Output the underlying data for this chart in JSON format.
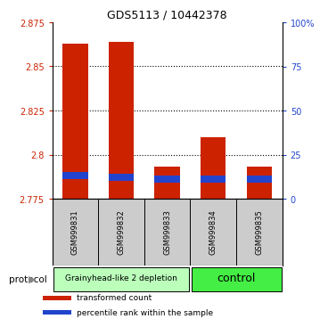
{
  "title": "GDS5113 / 10442378",
  "samples": [
    "GSM999831",
    "GSM999832",
    "GSM999833",
    "GSM999834",
    "GSM999835"
  ],
  "transformed_count": [
    2.863,
    2.864,
    2.793,
    2.81,
    2.793
  ],
  "percentile_rank": [
    2.788,
    2.787,
    2.786,
    2.786,
    2.786
  ],
  "bar_bottom": 2.775,
  "ylim_left": [
    2.775,
    2.875
  ],
  "ylim_right": [
    0,
    100
  ],
  "yticks_left": [
    2.775,
    2.8,
    2.825,
    2.85,
    2.875
  ],
  "yticks_right": [
    0,
    25,
    50,
    75,
    100
  ],
  "ytick_labels_left": [
    "2.775",
    "2.8",
    "2.825",
    "2.85",
    "2.875"
  ],
  "ytick_labels_right": [
    "0",
    "25",
    "50",
    "75",
    "100%"
  ],
  "red_color": "#cc2200",
  "blue_color": "#2244cc",
  "bar_width": 0.55,
  "blue_bar_height": 0.004,
  "group0_color": "#bbffbb",
  "group0_label": "Grainyhead-like 2 depletion",
  "group0_text_size": 6.5,
  "group1_color": "#44ee44",
  "group1_label": "control",
  "group1_text_size": 9,
  "protocol_label": "protocol",
  "legend_items": [
    {
      "color": "#cc2200",
      "label": "transformed count"
    },
    {
      "color": "#2244cc",
      "label": "percentile rank within the sample"
    }
  ],
  "background_color": "#ffffff",
  "plot_bg_color": "#ffffff",
  "grid_color": "#000000",
  "tick_color_left": "#cc2200",
  "tick_color_right": "#2244cc",
  "grid_ticks": [
    2.8,
    2.825,
    2.85
  ]
}
